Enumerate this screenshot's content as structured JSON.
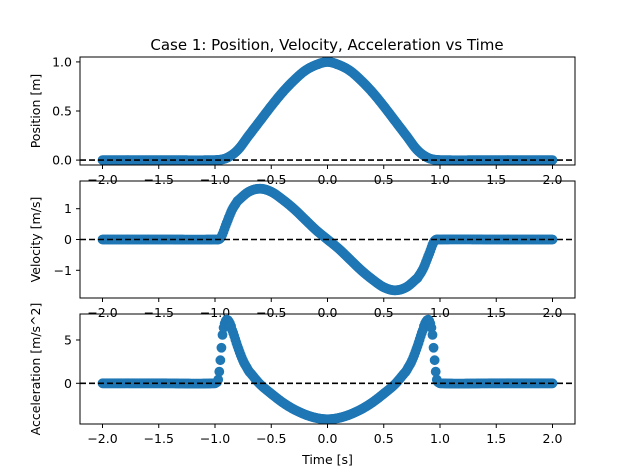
{
  "figure": {
    "title": "Case 1: Position, Velocity, Acceleration vs Time"
  },
  "chart_data": [
    {
      "type": "scatter",
      "title": "Case 1: Position, Velocity, Acceleration vs Time",
      "ylabel": "Position [m]",
      "xlabel": "",
      "xlim": [
        -2.2,
        2.2
      ],
      "ylim": [
        -0.05,
        1.05
      ],
      "xticks": [
        -2.0,
        -1.5,
        -1.0,
        -0.5,
        0.0,
        0.5,
        1.0,
        1.5,
        2.0
      ],
      "xtick_labels": [
        "−2.0",
        "−1.5",
        "−1.0",
        "−0.5",
        "0.0",
        "0.5",
        "1.0",
        "1.5",
        "2.0"
      ],
      "yticks": [
        0.0,
        0.5,
        1.0
      ],
      "ytick_labels": [
        "0.0",
        "0.5",
        "1.0"
      ],
      "marker_color": "#1f77b4",
      "reference_line": {
        "y": 0,
        "style": "dashed",
        "color": "#000000"
      },
      "grid": false,
      "x": [
        -2.0,
        -1.5,
        -1.0,
        -0.9,
        -0.8,
        -0.7,
        -0.6,
        -0.5,
        -0.4,
        -0.3,
        -0.2,
        -0.1,
        0.0,
        0.1,
        0.2,
        0.3,
        0.4,
        0.5,
        0.6,
        0.7,
        0.8,
        0.9,
        1.0,
        1.5,
        2.0
      ],
      "y": [
        0.0,
        0.0,
        0.0,
        0.02,
        0.1,
        0.25,
        0.4,
        0.55,
        0.69,
        0.81,
        0.91,
        0.97,
        1.0,
        0.97,
        0.91,
        0.81,
        0.69,
        0.55,
        0.4,
        0.25,
        0.1,
        0.02,
        0.0,
        0.0,
        0.0
      ]
    },
    {
      "type": "scatter",
      "ylabel": "Velocity [m/s]",
      "xlabel": "",
      "xlim": [
        -2.2,
        2.2
      ],
      "ylim": [
        -1.9,
        1.9
      ],
      "xticks": [
        -2.0,
        -1.5,
        -1.0,
        -0.5,
        0.0,
        0.5,
        1.0,
        1.5,
        2.0
      ],
      "xtick_labels": [
        "−2.0",
        "−1.5",
        "−1.0",
        "−0.5",
        "0.0",
        "0.5",
        "1.0",
        "1.5",
        "2.0"
      ],
      "yticks": [
        -1,
        0,
        1
      ],
      "ytick_labels": [
        "−1",
        "0",
        "1"
      ],
      "marker_color": "#1f77b4",
      "reference_line": {
        "y": 0,
        "style": "dashed",
        "color": "#000000"
      },
      "grid": false,
      "x": [
        -2.0,
        -1.5,
        -1.0,
        -0.95,
        -0.9,
        -0.85,
        -0.8,
        -0.7,
        -0.6,
        -0.5,
        -0.4,
        -0.3,
        -0.2,
        -0.1,
        0.0,
        0.1,
        0.2,
        0.3,
        0.4,
        0.5,
        0.6,
        0.7,
        0.8,
        0.85,
        0.9,
        0.95,
        1.0,
        1.5,
        2.0
      ],
      "y": [
        0.0,
        0.0,
        0.0,
        0.05,
        0.5,
        0.95,
        1.25,
        1.55,
        1.65,
        1.55,
        1.3,
        1.0,
        0.65,
        0.3,
        0.0,
        -0.3,
        -0.65,
        -1.0,
        -1.3,
        -1.55,
        -1.65,
        -1.55,
        -1.25,
        -0.95,
        -0.5,
        -0.05,
        0.0,
        0.0,
        0.0
      ]
    },
    {
      "type": "scatter",
      "ylabel": "Acceleration [m/s^2]",
      "xlabel": "Time [s]",
      "xlim": [
        -2.2,
        2.2
      ],
      "ylim": [
        -4.7,
        8.0
      ],
      "xticks": [
        -2.0,
        -1.5,
        -1.0,
        -0.5,
        0.0,
        0.5,
        1.0,
        1.5,
        2.0
      ],
      "xtick_labels": [
        "−2.0",
        "−1.5",
        "−1.0",
        "−0.5",
        "0.0",
        "0.5",
        "1.0",
        "1.5",
        "2.0"
      ],
      "yticks": [
        0,
        5
      ],
      "ytick_labels": [
        "0",
        "5"
      ],
      "marker_color": "#1f77b4",
      "reference_line": {
        "y": 0,
        "style": "dashed",
        "color": "#000000"
      },
      "grid": false,
      "x": [
        -2.0,
        -1.5,
        -1.0,
        -0.97,
        -0.95,
        -0.93,
        -0.9,
        -0.87,
        -0.85,
        -0.8,
        -0.75,
        -0.7,
        -0.6,
        -0.5,
        -0.4,
        -0.3,
        -0.2,
        -0.1,
        0.0,
        0.1,
        0.2,
        0.3,
        0.4,
        0.5,
        0.6,
        0.7,
        0.75,
        0.8,
        0.85,
        0.87,
        0.9,
        0.93,
        0.95,
        0.97,
        1.0,
        1.5,
        2.0
      ],
      "y": [
        0.0,
        0.0,
        0.0,
        0.5,
        3.0,
        6.0,
        7.3,
        7.0,
        6.2,
        4.3,
        2.6,
        1.4,
        -0.1,
        -1.2,
        -2.2,
        -3.0,
        -3.6,
        -4.0,
        -4.15,
        -4.0,
        -3.6,
        -3.0,
        -2.2,
        -1.2,
        -0.1,
        1.4,
        2.6,
        4.3,
        6.2,
        7.0,
        7.3,
        6.0,
        3.0,
        0.5,
        0.0,
        0.0,
        0.0
      ]
    }
  ]
}
